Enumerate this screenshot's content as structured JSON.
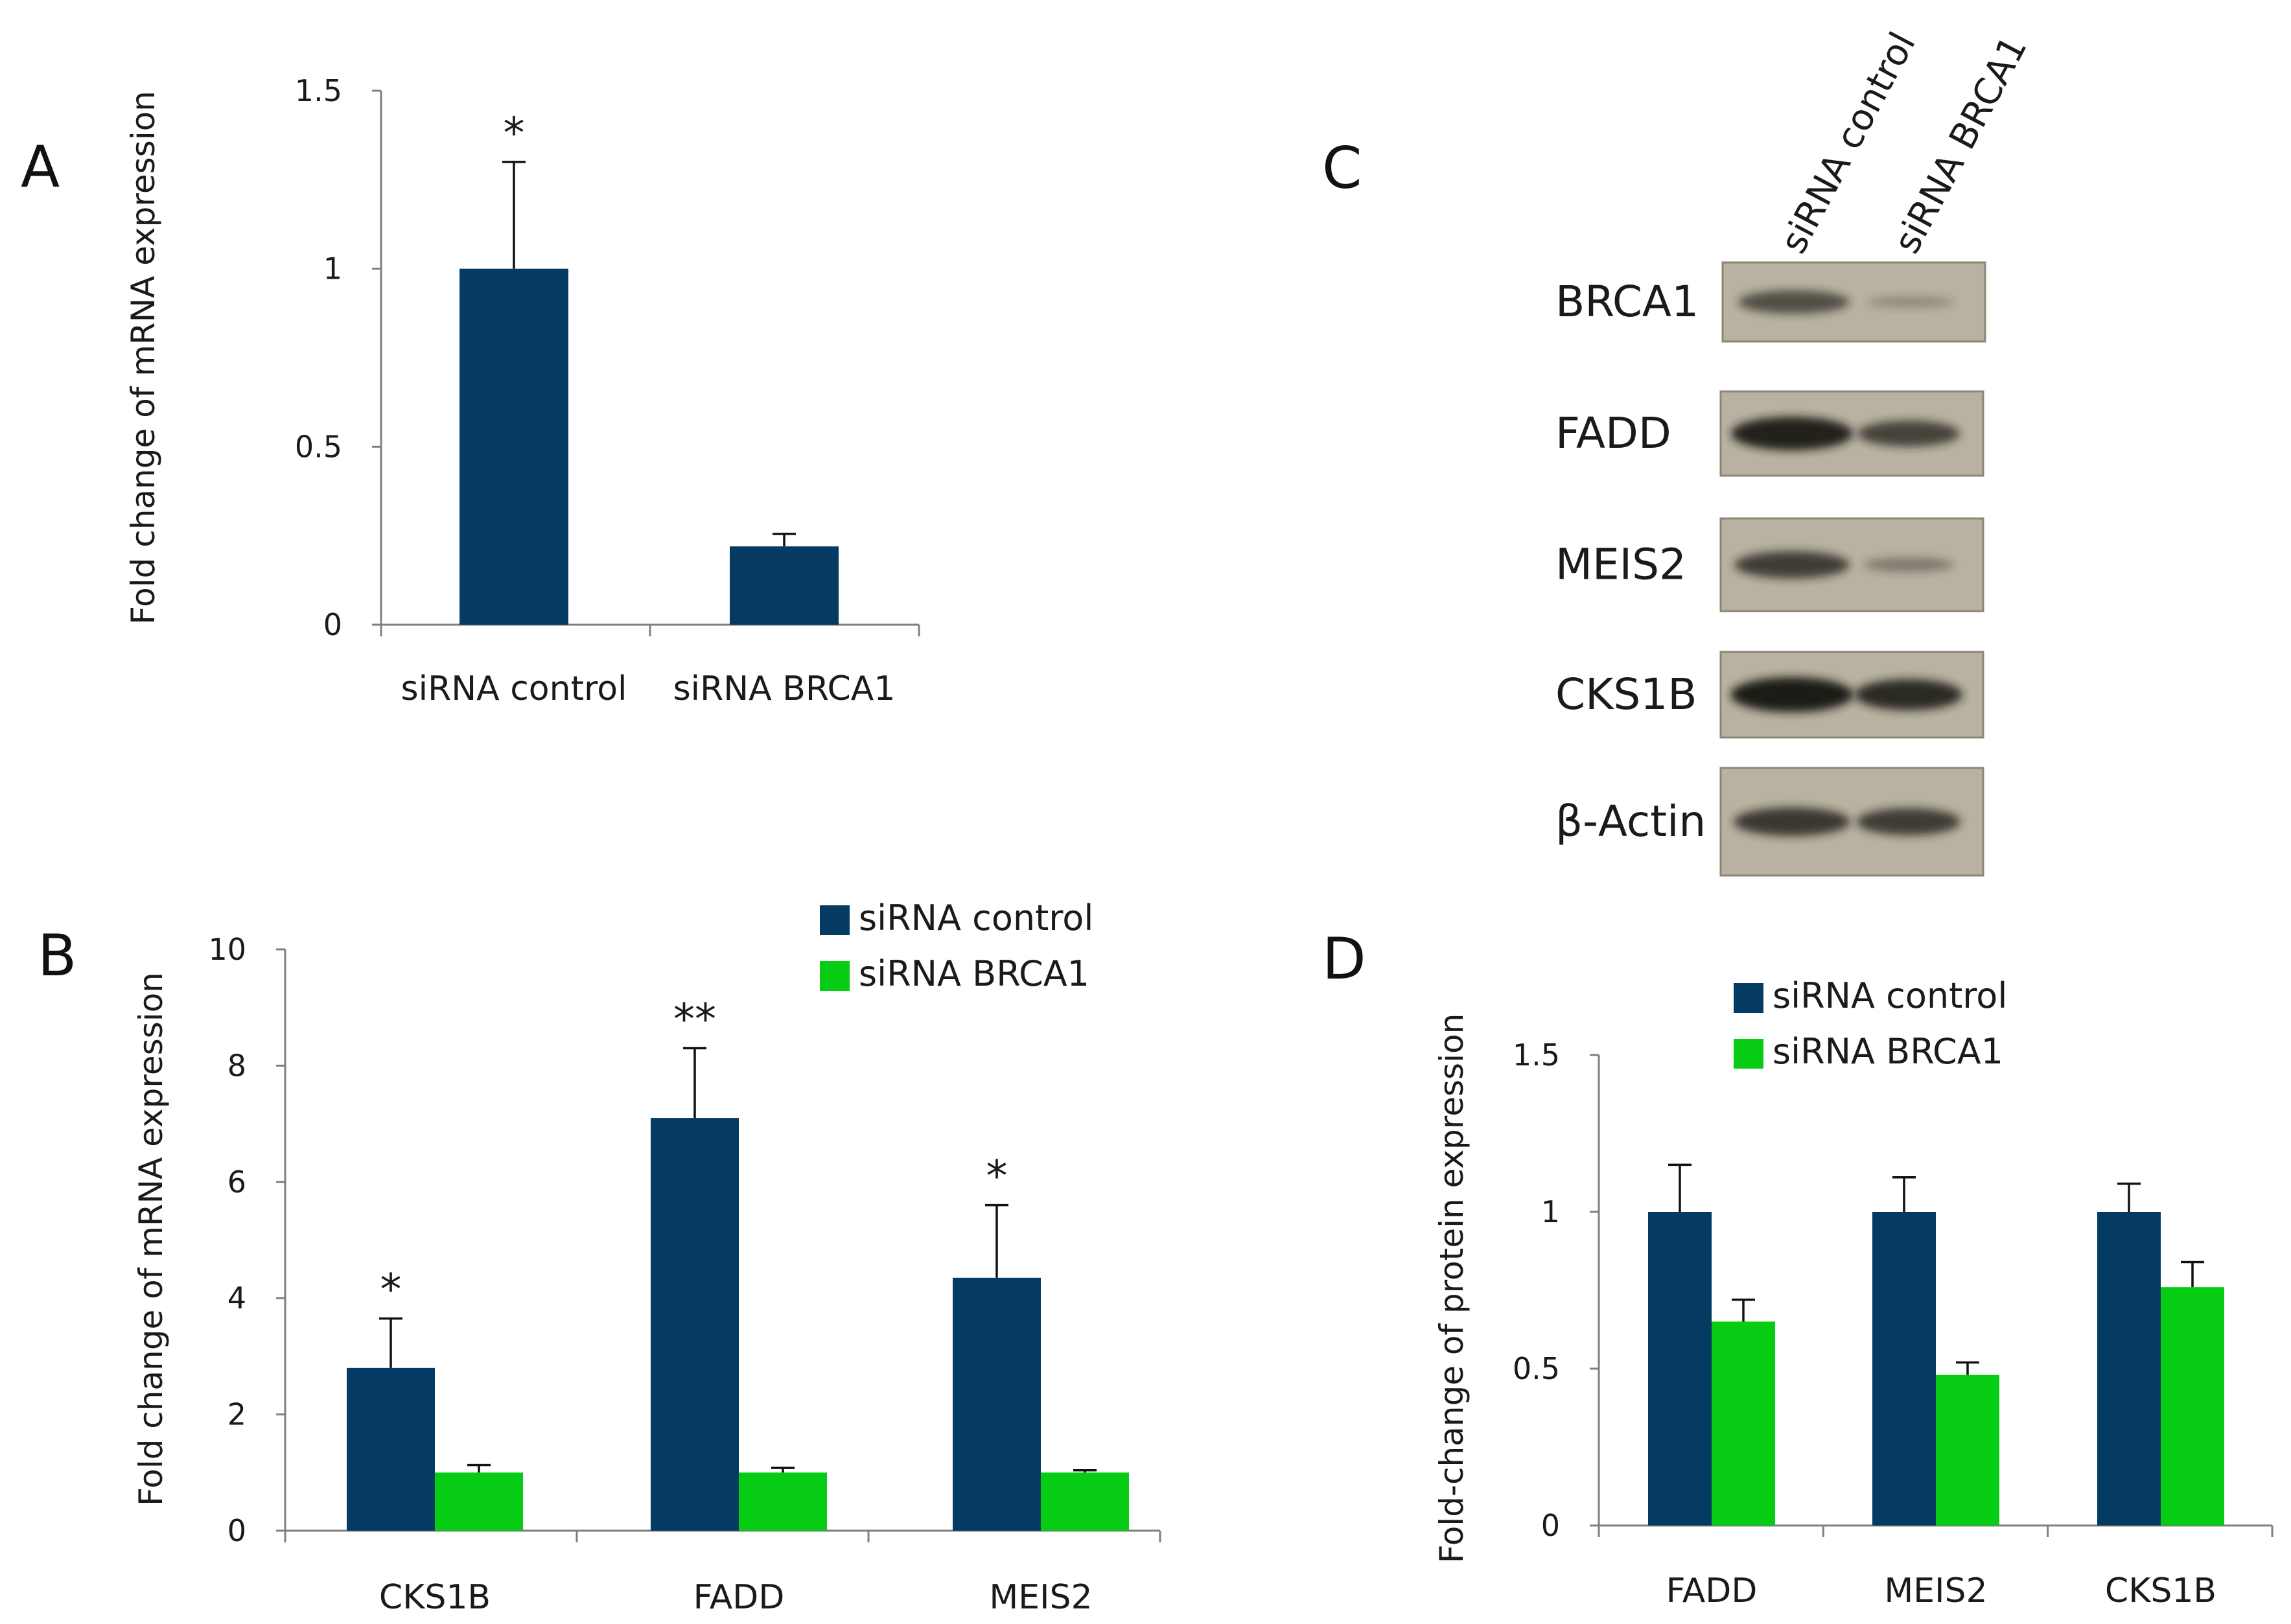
{
  "panels": {
    "a": "A",
    "b": "B",
    "c": "C",
    "d": "D"
  },
  "colors": {
    "control": "#053b63",
    "brca1": "#06cc14",
    "axis": "#7f7f7f",
    "blot_bg": "#b9b2a2",
    "band": "#1e1b18"
  },
  "chart_data": [
    {
      "panel": "A",
      "type": "bar",
      "title": "",
      "xlabel": "",
      "ylabel": "Fold change of mRNA expression",
      "ylim": [
        0,
        1.5
      ],
      "yticks": [
        "0",
        "0.5",
        "1",
        "1.5"
      ],
      "categories": [
        "siRNA control",
        "siRNA BRCA1"
      ],
      "series": [
        {
          "name": "mRNA",
          "values": [
            1.0,
            0.22
          ],
          "errors": [
            0.3,
            0.035
          ],
          "colors": [
            "#053b63",
            "#053b63"
          ]
        }
      ],
      "annotations": [
        "*",
        ""
      ]
    },
    {
      "panel": "B",
      "type": "bar",
      "title": "",
      "xlabel": "",
      "ylabel": "Fold change of mRNA expression",
      "ylim": [
        0,
        10
      ],
      "yticks": [
        "0",
        "2",
        "4",
        "6",
        "8",
        "10"
      ],
      "categories": [
        "CKS1B",
        "FADD",
        "MEIS2"
      ],
      "legend": [
        "siRNA control",
        "siRNA BRCA1"
      ],
      "series": [
        {
          "name": "siRNA control",
          "values": [
            2.8,
            7.1,
            4.35
          ],
          "errors": [
            0.85,
            1.2,
            1.25
          ]
        },
        {
          "name": "siRNA BRCA1",
          "values": [
            1.0,
            1.0,
            1.0
          ],
          "errors": [
            0.13,
            0.08,
            0.04
          ]
        }
      ],
      "annotations": [
        "*",
        "**",
        "*"
      ]
    },
    {
      "panel": "D",
      "type": "bar",
      "title": "",
      "xlabel": "",
      "ylabel": "Fold-change of protein expression",
      "ylim": [
        0,
        1.5
      ],
      "yticks": [
        "0",
        "0.5",
        "1",
        "1.5"
      ],
      "categories": [
        "FADD",
        "MEIS2",
        "CKS1B"
      ],
      "legend": [
        "siRNA control",
        "siRNA BRCA1"
      ],
      "series": [
        {
          "name": "siRNA control",
          "values": [
            1.0,
            1.0,
            1.0
          ],
          "errors": [
            0.15,
            0.11,
            0.09
          ]
        },
        {
          "name": "siRNA BRCA1",
          "values": [
            0.65,
            0.48,
            0.76
          ],
          "errors": [
            0.07,
            0.04,
            0.08
          ]
        }
      ],
      "annotations": [
        "",
        "",
        ""
      ]
    }
  ],
  "western_blot": {
    "lanes": [
      "siRNA control",
      "siRNA BRCA1"
    ],
    "rows": [
      {
        "protein": "BRCA1",
        "control": 0.55,
        "brca1": 0.12
      },
      {
        "protein": "FADD",
        "control": 0.95,
        "brca1": 0.7
      },
      {
        "protein": "MEIS2",
        "control": 0.7,
        "brca1": 0.25
      },
      {
        "protein": "CKS1B",
        "control": 1.0,
        "brca1": 0.9
      },
      {
        "protein": "β-Actin",
        "control": 0.75,
        "brca1": 0.75
      }
    ]
  }
}
